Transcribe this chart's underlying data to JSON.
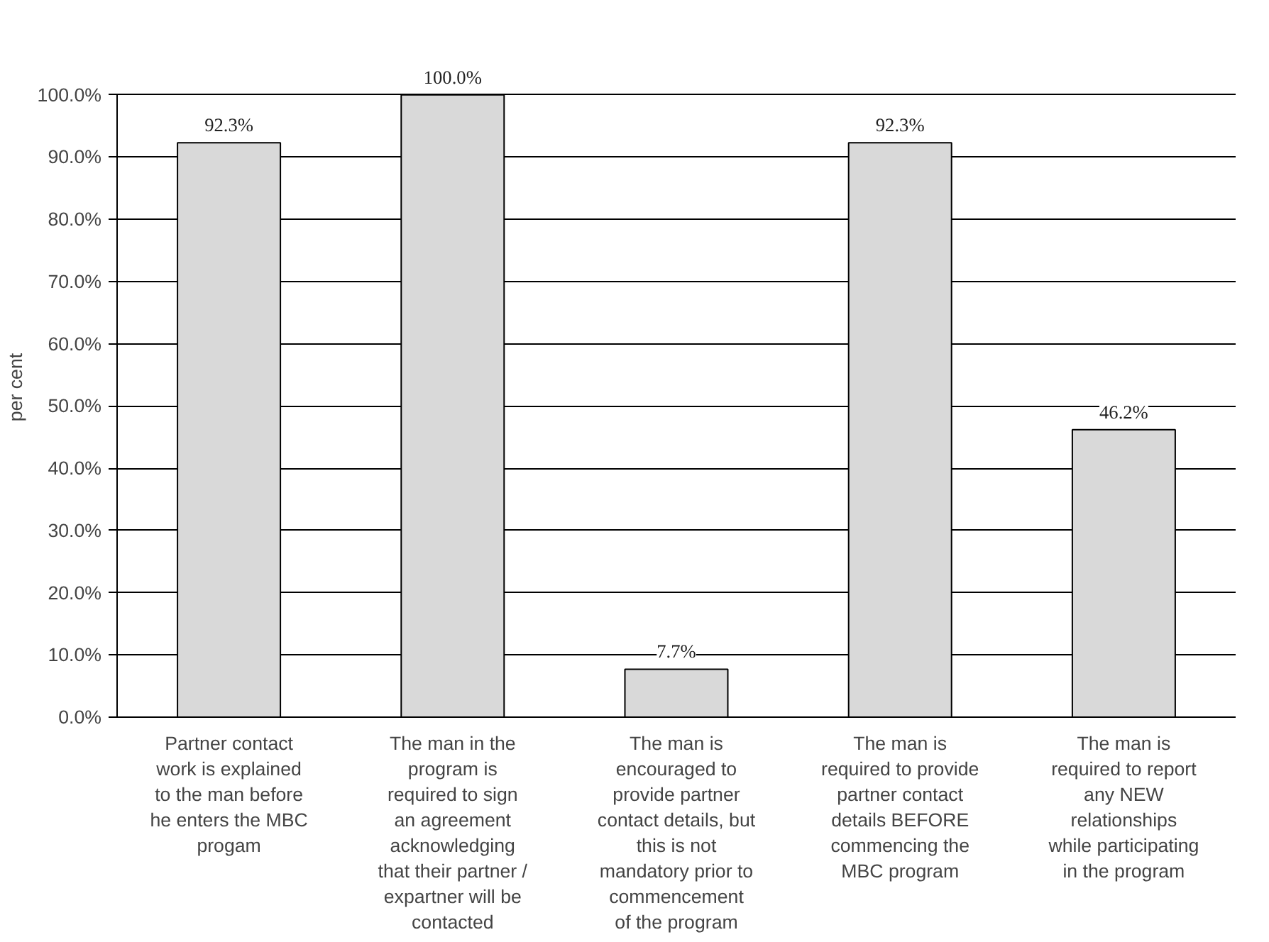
{
  "chart_data": {
    "type": "bar",
    "ylabel": "per cent",
    "categories": [
      "Partner contact\nwork is explained\nto the man before\nhe enters the MBC\nprogam",
      "The man in the\nprogram is\nrequired to sign\nan agreement\nacknowledging\nthat their partner /\nexpartner will be\ncontacted",
      "The man is\nencouraged to\nprovide partner\ncontact details, but\nthis is not\nmandatory prior to\ncommencement\nof the program",
      "The man is\nrequired to provide\npartner contact\ndetails BEFORE\ncommencing the\nMBC program",
      "The man is\nrequired to report\nany NEW\nrelationships\nwhile participating\nin the program"
    ],
    "values": [
      92.3,
      100.0,
      7.7,
      92.3,
      46.2
    ],
    "value_labels": [
      "92.3%",
      "100.0%",
      "7.7%",
      "92.3%",
      "46.2%"
    ],
    "color": "#d9d9d9",
    "ylim": [
      0,
      100
    ],
    "yticks": [
      {
        "value": 0,
        "label": "0.0%"
      },
      {
        "value": 10,
        "label": "10.0%"
      },
      {
        "value": 20,
        "label": "20.0%"
      },
      {
        "value": 30,
        "label": "30.0%"
      },
      {
        "value": 40,
        "label": "40.0%"
      },
      {
        "value": 50,
        "label": "50.0%"
      },
      {
        "value": 60,
        "label": "60.0%"
      },
      {
        "value": 70,
        "label": "70.0%"
      },
      {
        "value": 80,
        "label": "80.0%"
      },
      {
        "value": 90,
        "label": "90.0%"
      },
      {
        "value": 100,
        "label": "100.0%"
      }
    ],
    "grid": "y"
  }
}
